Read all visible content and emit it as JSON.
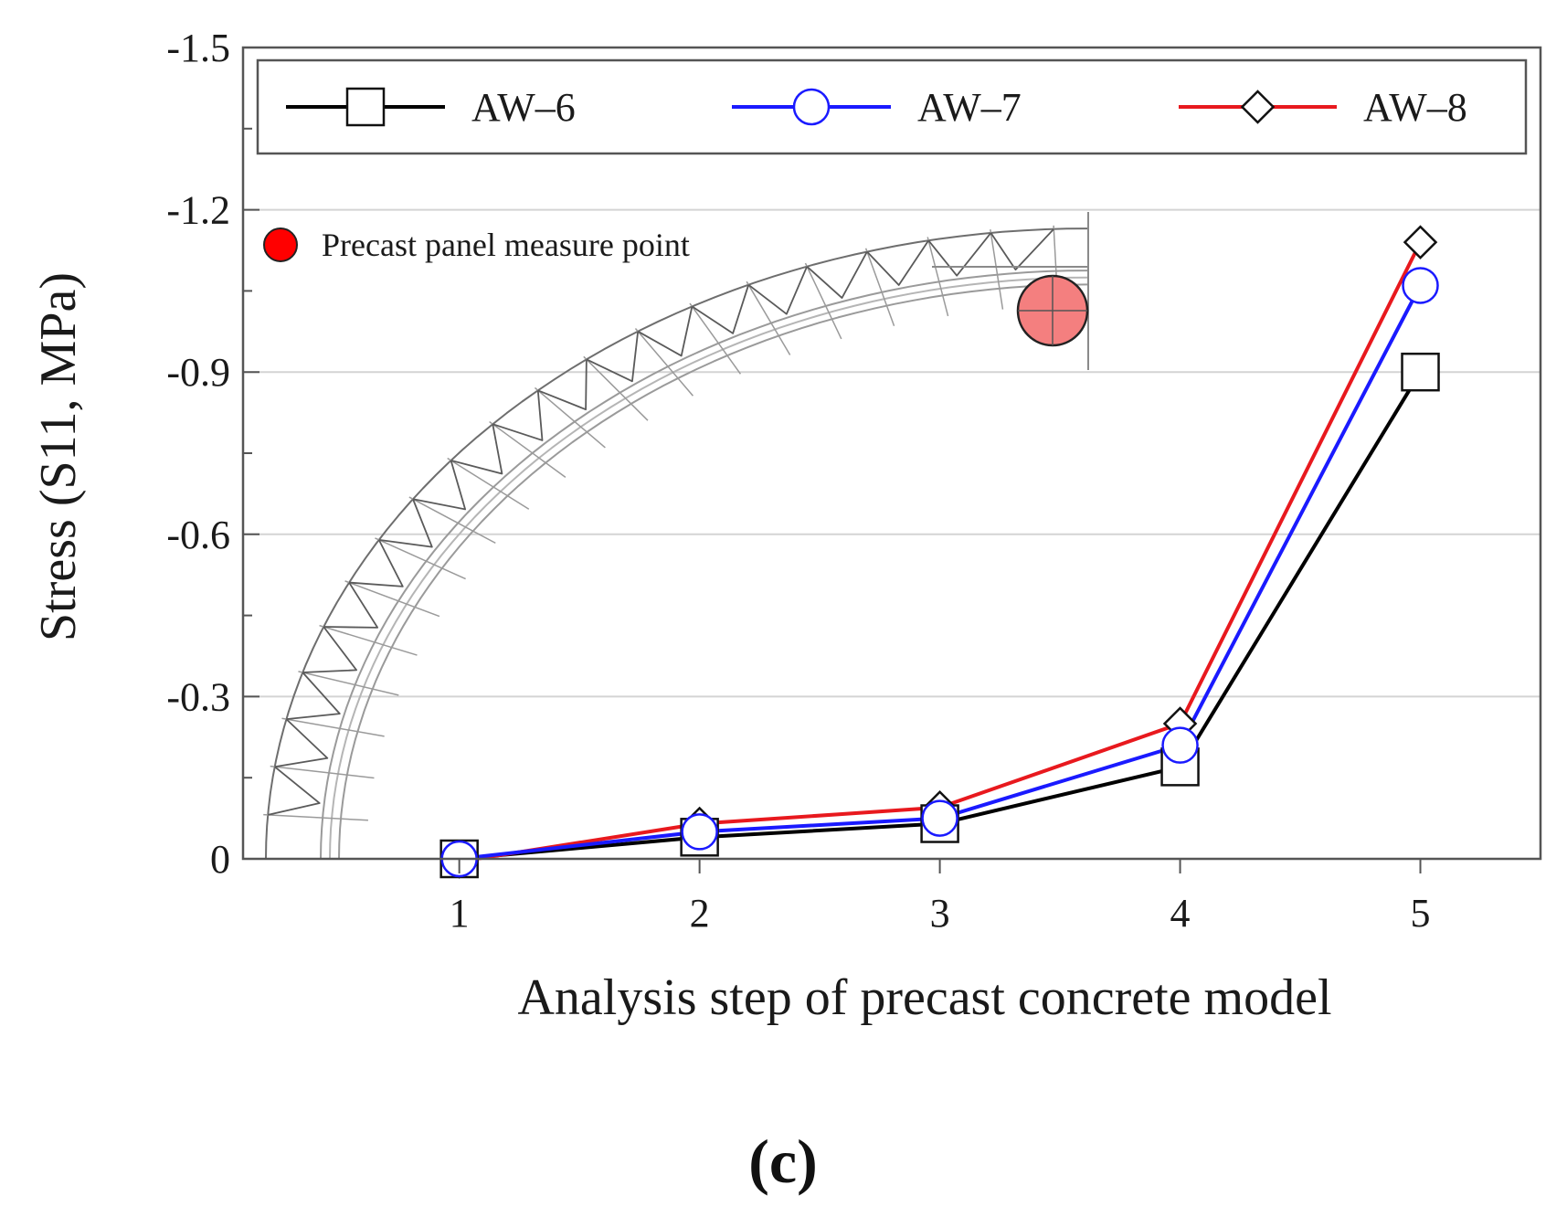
{
  "chart_data": {
    "type": "line",
    "title": "",
    "xlabel": "Analysis step of precast concrete model",
    "ylabel": "Stress (S11, MPa)",
    "x": [
      1,
      2,
      3,
      4,
      5
    ],
    "xlim": [
      0.1,
      5.5
    ],
    "ylim": [
      0,
      -1.5
    ],
    "y_inverted": true,
    "yticks": [
      0,
      -0.3,
      -0.6,
      -0.9,
      -1.2,
      -1.5
    ],
    "ytick_labels": [
      "0",
      "-0.3",
      "-0.6",
      "-0.9",
      "-1.2",
      "-1.5"
    ],
    "xticks": [
      1,
      2,
      3,
      4,
      5
    ],
    "xtick_labels": [
      "1",
      "2",
      "3",
      "4",
      "5"
    ],
    "grid": "horizontal",
    "legend_position": "top",
    "series": [
      {
        "name": "AW–6",
        "color": "#000000",
        "marker": "square",
        "values": [
          0,
          -0.04,
          -0.065,
          -0.17,
          -0.9
        ]
      },
      {
        "name": "AW–7",
        "color": "#1a1aff",
        "marker": "circle",
        "values": [
          0,
          -0.05,
          -0.075,
          -0.21,
          -1.06
        ]
      },
      {
        "name": "AW–8",
        "color": "#e8191e",
        "marker": "diamond",
        "values": [
          0.005,
          -0.065,
          -0.095,
          -0.25,
          -1.14
        ]
      }
    ],
    "inset": {
      "marker_color": "#ff0000",
      "measure_point_label": "Precast panel measure point"
    },
    "panel_label": "(c)"
  }
}
